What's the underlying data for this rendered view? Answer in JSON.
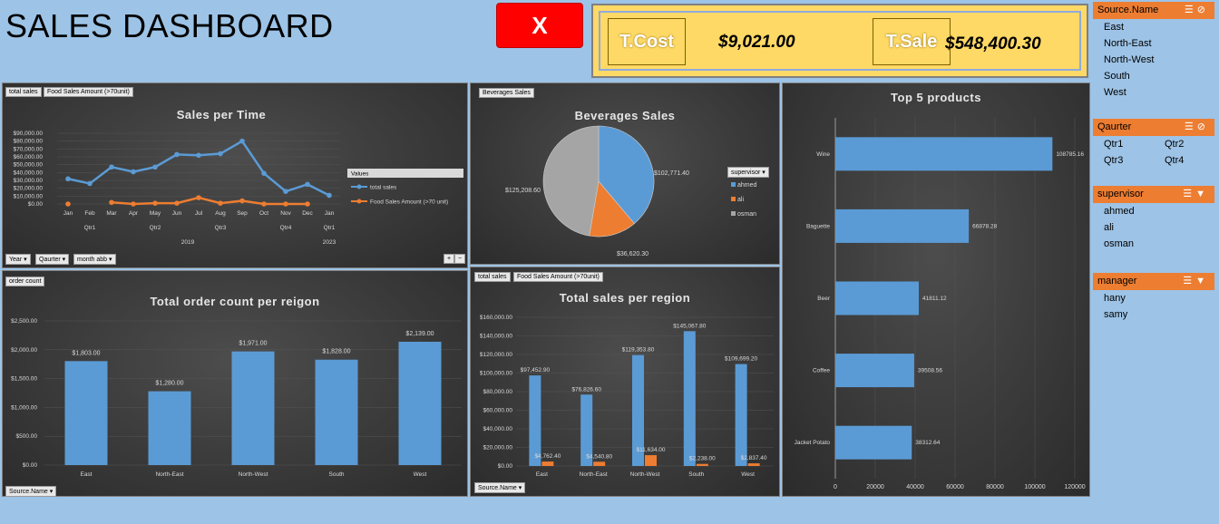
{
  "header": {
    "title": "SALES DASHBOARD",
    "clear_label": "X"
  },
  "kpi": {
    "cost_label": "T.Cost",
    "cost_value": "$9,021.00",
    "sale_label": "T.Sale",
    "sale_value": "$548,400.30"
  },
  "sales_time": {
    "chips": [
      "total sales",
      "Food Sales Amount (>70unit)"
    ],
    "title": "Sales per Time",
    "legend_title": "Values",
    "legend": [
      "total sales",
      "Food Sales Amount (>70 unit)"
    ],
    "filters": [
      "Year",
      "Qaurter",
      "month abb"
    ],
    "yticks": [
      "$90,000.00",
      "$80,000.00",
      "$70,000.00",
      "$60,000.00",
      "$50,000.00",
      "$40,000.00",
      "$30,000.00",
      "$20,000.00",
      "$10,000.00",
      "$0.00"
    ],
    "months": [
      "Jan",
      "Feb",
      "Mar",
      "Apr",
      "May",
      "Jun",
      "Jul",
      "Aug",
      "Sep",
      "Oct",
      "Nov",
      "Dec",
      "Jan"
    ],
    "quarters": [
      "Qtr1",
      "Qtr2",
      "Qtr3",
      "Qtr4",
      "Qtr1"
    ],
    "years": [
      "2019",
      "2023"
    ],
    "colors": {
      "total": "#5b9bd5",
      "food": "#ed7d31"
    }
  },
  "beverages": {
    "chip": "Beverages Sales",
    "title": "Beverages Sales",
    "legend_button": "supervisor",
    "legend": [
      "ahmed",
      "ali",
      "osman"
    ],
    "labels": [
      "$102,771.40",
      "$36,620.30",
      "$125,208.60"
    ],
    "colors": [
      "#5b9bd5",
      "#ed7d31",
      "#a5a5a5"
    ]
  },
  "top5": {
    "title": "Top 5 products",
    "xticks": [
      "0",
      "20000",
      "40000",
      "60000",
      "80000",
      "100000",
      "120000"
    ],
    "color": "#5b9bd5"
  },
  "order_count": {
    "chip": "order count",
    "title": "Total order count per reigon",
    "filter": "Source.Name",
    "yticks": [
      "$2,500.00",
      "$2,000.00",
      "$1,500.00",
      "$1,000.00",
      "$500.00",
      "$0.00"
    ],
    "color": "#5b9bd5"
  },
  "sales_region": {
    "chips": [
      "total sales",
      "Food Sales Amount (>70unit)"
    ],
    "title": "Total sales per region",
    "filter": "Source.Name",
    "yticks": [
      "$160,000.00",
      "$140,000.00",
      "$120,000.00",
      "$100,000.00",
      "$80,000.00",
      "$60,000.00",
      "$40,000.00",
      "$20,000.00",
      "$0.00"
    ]
  },
  "chart_data": [
    {
      "type": "line",
      "title": "Sales per Time",
      "x": [
        "Jan",
        "Feb",
        "Mar",
        "Apr",
        "May",
        "Jun",
        "Jul",
        "Aug",
        "Sep",
        "Oct",
        "Nov",
        "Dec",
        "Jan"
      ],
      "ylim": [
        0,
        90000
      ],
      "series": [
        {
          "name": "total sales",
          "values": [
            32000,
            26000,
            47000,
            41000,
            47000,
            63000,
            62000,
            64000,
            80000,
            39000,
            16000,
            25000,
            11000
          ]
        },
        {
          "name": "Food Sales Amount (>70 unit)",
          "values": [
            0,
            null,
            2000,
            0,
            1000,
            1000,
            8000,
            1000,
            4000,
            0,
            0,
            0,
            null
          ]
        }
      ],
      "legend_position": "right"
    },
    {
      "type": "pie",
      "title": "Beverages Sales",
      "categories": [
        "ahmed",
        "ali",
        "osman"
      ],
      "values": [
        102771.4,
        36620.3,
        125208.6
      ]
    },
    {
      "type": "bar",
      "title": "Top 5 products",
      "orientation": "horizontal",
      "categories": [
        "Wine",
        "Baguette",
        "Beer",
        "Coffee",
        "Jacket Potato"
      ],
      "values": [
        108785.16,
        66878.28,
        41811.12,
        39508.56,
        38312.64
      ],
      "value_labels": [
        "108785.16",
        "66878.28",
        "41811.12",
        "39508.56",
        "38312.64"
      ],
      "xlim": [
        0,
        120000
      ]
    },
    {
      "type": "bar",
      "title": "Total order count per reigon",
      "categories": [
        "East",
        "North-East",
        "North-West",
        "South",
        "West"
      ],
      "values": [
        1803,
        1280,
        1971,
        1828,
        2139
      ],
      "value_labels": [
        "$1,803.00",
        "$1,280.00",
        "$1,971.00",
        "$1,828.00",
        "$2,139.00"
      ],
      "ylim": [
        0,
        2500
      ]
    },
    {
      "type": "bar",
      "title": "Total sales per region",
      "categories": [
        "East",
        "North-East",
        "North-West",
        "South",
        "West"
      ],
      "ylim": [
        0,
        160000
      ],
      "series": [
        {
          "name": "total sales",
          "values": [
            97452.9,
            76826.6,
            119353.8,
            145067.8,
            109699.2
          ],
          "value_labels": [
            "$97,452.90",
            "$76,826.60",
            "$119,353.80",
            "$145,067.80",
            "$109,699.20"
          ]
        },
        {
          "name": "Food Sales Amount (>70unit)",
          "values": [
            4762.4,
            4540.8,
            11634.0,
            2238.0,
            2837.4
          ],
          "value_labels": [
            "$4,762.40",
            "$4,540.80",
            "$11,634.00",
            "$2,238.00",
            "$2,837.40"
          ]
        }
      ]
    }
  ],
  "slicers": {
    "source": {
      "title": "Source.Name",
      "items": [
        "East",
        "North-East",
        "North-West",
        "South",
        "West"
      ]
    },
    "quarter": {
      "title": "Qaurter",
      "items": [
        "Qtr1",
        "Qtr2",
        "Qtr3",
        "Qtr4"
      ]
    },
    "supervisor": {
      "title": "supervisor",
      "items": [
        "ahmed",
        "ali",
        "osman"
      ]
    },
    "manager": {
      "title": "manager",
      "items": [
        "hany",
        "samy"
      ]
    }
  }
}
